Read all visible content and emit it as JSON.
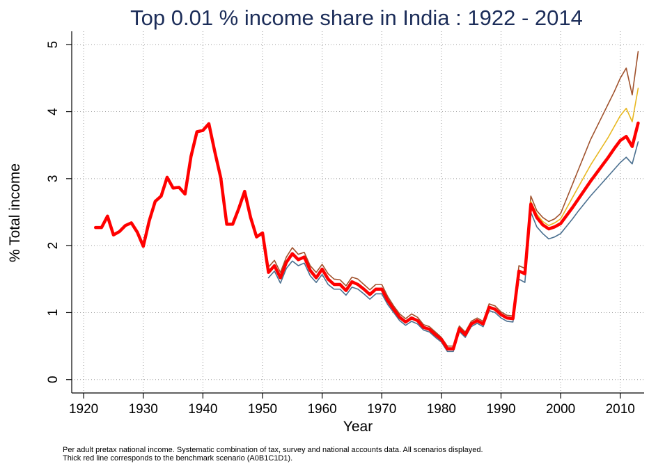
{
  "chart_data": {
    "type": "line",
    "title": "Top 0.01 % income share in India : 1922 - 2014",
    "x_label": "Year",
    "y_label": "% Total income",
    "notes": [
      "Per adult pretax national income. Systematic combination of tax, survey and national accounts data.  All scenarios displayed.",
      "Thick red line corresponds to the benchmark scenario (A0B1C1D1)."
    ],
    "xlim": [
      1918,
      2014
    ],
    "ylim": [
      -0.2,
      5.2
    ],
    "xticks": [
      1920,
      1930,
      1940,
      1950,
      1960,
      1970,
      1980,
      1990,
      2000,
      2010
    ],
    "yticks": [
      0,
      1,
      2,
      3,
      4,
      5
    ],
    "grid": true,
    "x": [
      1922,
      1923,
      1924,
      1925,
      1926,
      1927,
      1928,
      1929,
      1930,
      1931,
      1932,
      1933,
      1934,
      1935,
      1936,
      1937,
      1938,
      1939,
      1940,
      1941,
      1942,
      1943,
      1944,
      1945,
      1946,
      1947,
      1948,
      1949,
      1950,
      1951,
      1952,
      1953,
      1954,
      1955,
      1956,
      1957,
      1958,
      1959,
      1960,
      1961,
      1962,
      1963,
      1964,
      1965,
      1966,
      1967,
      1968,
      1969,
      1970,
      1971,
      1972,
      1973,
      1974,
      1975,
      1976,
      1977,
      1978,
      1979,
      1980,
      1981,
      1982,
      1983,
      1984,
      1985,
      1986,
      1987,
      1988,
      1989,
      1990,
      1991,
      1992,
      1993,
      1994,
      1995,
      1996,
      1997,
      1998,
      1999,
      2000,
      2001,
      2002,
      2003,
      2004,
      2005,
      2006,
      2007,
      2008,
      2009,
      2010,
      2011,
      2012,
      2013
    ],
    "series": [
      {
        "color": "#a0522d",
        "width": 1.6,
        "values": [
          null,
          null,
          null,
          null,
          null,
          null,
          null,
          null,
          null,
          null,
          null,
          null,
          null,
          null,
          null,
          null,
          null,
          null,
          null,
          null,
          null,
          null,
          null,
          null,
          null,
          null,
          null,
          null,
          null,
          1.68,
          1.78,
          1.6,
          1.83,
          1.97,
          1.87,
          1.9,
          1.7,
          1.6,
          1.72,
          1.58,
          1.5,
          1.49,
          1.4,
          1.53,
          1.5,
          1.42,
          1.34,
          1.42,
          1.42,
          1.24,
          1.1,
          0.98,
          0.91,
          0.98,
          0.93,
          0.82,
          0.79,
          0.71,
          0.63,
          0.5,
          0.5,
          0.8,
          0.71,
          0.87,
          0.92,
          0.87,
          1.13,
          1.1,
          1.01,
          0.96,
          0.95,
          1.7,
          1.66,
          2.74,
          2.52,
          2.42,
          2.36,
          2.4,
          2.48,
          2.7,
          2.92,
          3.14,
          3.36,
          3.58,
          3.76,
          3.94,
          4.12,
          4.3,
          4.5,
          4.65,
          4.25,
          4.9
        ]
      },
      {
        "color": "#e8b820",
        "width": 1.6,
        "values": [
          null,
          null,
          null,
          null,
          null,
          null,
          null,
          null,
          null,
          null,
          null,
          null,
          null,
          null,
          null,
          null,
          null,
          null,
          null,
          null,
          null,
          null,
          null,
          null,
          null,
          null,
          null,
          null,
          null,
          1.6,
          1.7,
          1.52,
          1.75,
          1.88,
          1.79,
          1.83,
          1.63,
          1.52,
          1.65,
          1.5,
          1.42,
          1.42,
          1.33,
          1.46,
          1.42,
          1.35,
          1.27,
          1.35,
          1.35,
          1.18,
          1.05,
          0.93,
          0.86,
          0.92,
          0.88,
          0.78,
          0.75,
          0.67,
          0.6,
          0.46,
          0.46,
          0.76,
          0.67,
          0.83,
          0.88,
          0.83,
          1.08,
          1.05,
          0.97,
          0.92,
          0.91,
          1.62,
          1.58,
          2.66,
          2.47,
          2.36,
          2.3,
          2.34,
          2.4,
          2.56,
          2.72,
          2.88,
          3.04,
          3.2,
          3.34,
          3.48,
          3.62,
          3.78,
          3.94,
          4.05,
          3.85,
          4.35
        ]
      },
      {
        "color": "#4a6f8f",
        "width": 1.6,
        "values": [
          null,
          null,
          null,
          null,
          null,
          null,
          null,
          null,
          null,
          null,
          null,
          null,
          null,
          null,
          null,
          null,
          null,
          null,
          null,
          null,
          null,
          null,
          null,
          null,
          null,
          null,
          null,
          null,
          null,
          1.52,
          1.62,
          1.44,
          1.66,
          1.77,
          1.7,
          1.74,
          1.55,
          1.45,
          1.57,
          1.42,
          1.35,
          1.35,
          1.26,
          1.38,
          1.35,
          1.28,
          1.2,
          1.28,
          1.28,
          1.12,
          1.0,
          0.88,
          0.81,
          0.87,
          0.83,
          0.74,
          0.71,
          0.63,
          0.56,
          0.42,
          0.42,
          0.72,
          0.63,
          0.79,
          0.84,
          0.79,
          1.03,
          1.0,
          0.92,
          0.87,
          0.86,
          1.5,
          1.45,
          2.5,
          2.28,
          2.18,
          2.1,
          2.13,
          2.18,
          2.29,
          2.4,
          2.52,
          2.63,
          2.74,
          2.84,
          2.94,
          3.04,
          3.14,
          3.24,
          3.32,
          3.22,
          3.55
        ]
      },
      {
        "color": "#ff0000",
        "width": 4.5,
        "values": [
          2.27,
          2.27,
          2.44,
          2.16,
          2.21,
          2.3,
          2.34,
          2.2,
          1.99,
          2.37,
          2.66,
          2.74,
          3.02,
          2.86,
          2.87,
          2.77,
          3.33,
          3.7,
          3.72,
          3.82,
          3.4,
          3.01,
          2.32,
          2.32,
          2.55,
          2.81,
          2.42,
          2.13,
          2.19,
          1.6,
          1.7,
          1.52,
          1.75,
          1.88,
          1.79,
          1.83,
          1.63,
          1.52,
          1.65,
          1.5,
          1.42,
          1.42,
          1.33,
          1.46,
          1.42,
          1.35,
          1.27,
          1.35,
          1.35,
          1.18,
          1.05,
          0.93,
          0.86,
          0.92,
          0.88,
          0.78,
          0.75,
          0.67,
          0.6,
          0.46,
          0.46,
          0.76,
          0.67,
          0.83,
          0.88,
          0.83,
          1.08,
          1.05,
          0.97,
          0.92,
          0.91,
          1.62,
          1.58,
          2.62,
          2.42,
          2.31,
          2.25,
          2.28,
          2.33,
          2.45,
          2.57,
          2.7,
          2.83,
          2.96,
          3.08,
          3.2,
          3.32,
          3.45,
          3.57,
          3.63,
          3.48,
          3.83
        ]
      }
    ]
  }
}
